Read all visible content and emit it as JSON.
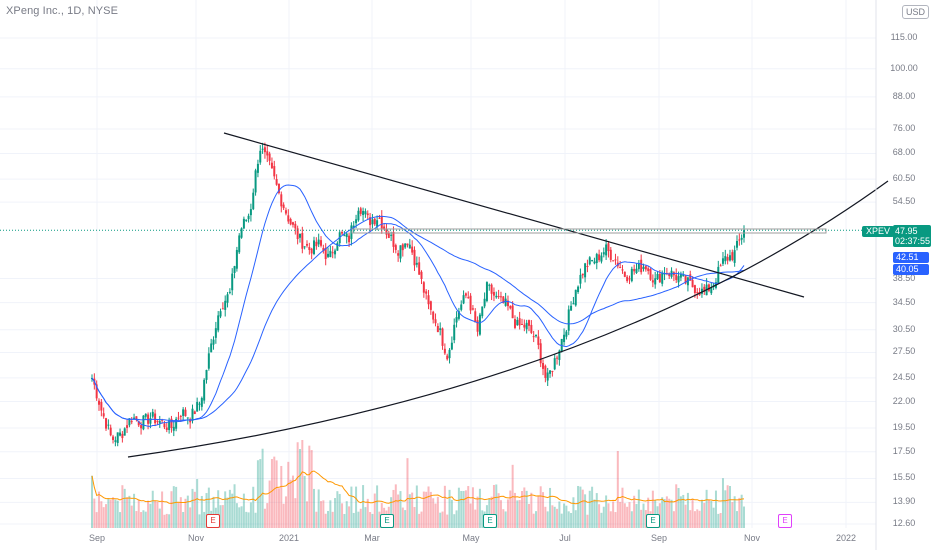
{
  "header": {
    "symbol_title": "XPeng Inc., 1D, NYSE",
    "currency": "USD"
  },
  "price_tags": {
    "symbol": "XPEV",
    "last_price": "47.95",
    "countdown": "02:37:55",
    "ma_fast_value": "42.51",
    "ma_slow_value": "40.05"
  },
  "earnings_markers": [
    {
      "label": "E",
      "color": "#e53935"
    },
    {
      "label": "E",
      "color": "#089981"
    },
    {
      "label": "E",
      "color": "#089981"
    },
    {
      "label": "E",
      "color": "#089981"
    },
    {
      "label": "E",
      "color": "#e040fb"
    }
  ],
  "colors": {
    "up": "#089981",
    "down": "#f23645",
    "ma": "#2962ff",
    "volume_ma": "#ff9800",
    "trendline": "#131722",
    "grid": "#f0f3fa"
  },
  "chart_data": {
    "type": "candlestick",
    "symbol": "XPEV",
    "interval": "1D",
    "exchange": "NYSE",
    "y_axis": {
      "scale": "log",
      "ticks": [
        "115.00",
        "100.00",
        "88.00",
        "76.00",
        "68.00",
        "60.50",
        "54.50",
        "47.95",
        "38.50",
        "34.50",
        "30.50",
        "27.50",
        "24.50",
        "22.00",
        "19.50",
        "17.50",
        "15.50",
        "13.90",
        "12.60"
      ]
    },
    "x_axis": {
      "ticks": [
        "Sep",
        "Nov",
        "2021",
        "Mar",
        "May",
        "Jul",
        "Sep",
        "Nov",
        "2022"
      ]
    },
    "price_path": [
      [
        "Sep",
        24.5
      ],
      [
        "Sep",
        21
      ],
      [
        "Sep",
        18.5
      ],
      [
        "Sep",
        19
      ],
      [
        "Oct",
        20.5
      ],
      [
        "Oct",
        20
      ],
      [
        "Oct",
        20.5
      ],
      [
        "Oct",
        20
      ],
      [
        "Oct",
        19.5
      ],
      [
        "Oct",
        21
      ],
      [
        "Oct",
        20.5
      ],
      [
        "Oct",
        22
      ],
      [
        "Nov",
        28
      ],
      [
        "Nov",
        34
      ],
      [
        "Nov",
        36
      ],
      [
        "Nov",
        48
      ],
      [
        "Nov",
        52
      ],
      [
        "Nov",
        70
      ],
      [
        "Nov",
        64
      ],
      [
        "Dec",
        56
      ],
      [
        "Dec",
        50
      ],
      [
        "Dec",
        46
      ],
      [
        "Dec",
        44
      ],
      [
        "Dec",
        45
      ],
      [
        "Jan",
        42
      ],
      [
        "Jan",
        47
      ],
      [
        "Jan",
        46
      ],
      [
        "Jan",
        54
      ],
      [
        "Jan",
        50
      ],
      [
        "Feb",
        51
      ],
      [
        "Feb",
        47
      ],
      [
        "Feb",
        44
      ],
      [
        "Feb",
        46
      ],
      [
        "Feb",
        40
      ],
      [
        "Mar",
        34
      ],
      [
        "Mar",
        31
      ],
      [
        "Mar",
        27
      ],
      [
        "Mar",
        33
      ],
      [
        "Mar",
        36
      ],
      [
        "Apr",
        30
      ],
      [
        "Apr",
        37
      ],
      [
        "Apr",
        35
      ],
      [
        "Apr",
        34
      ],
      [
        "Apr",
        31
      ],
      [
        "May",
        31
      ],
      [
        "May",
        29
      ],
      [
        "May",
        24
      ],
      [
        "May",
        27
      ],
      [
        "Jun",
        31
      ],
      [
        "Jun",
        37
      ],
      [
        "Jun",
        41
      ],
      [
        "Jun",
        42
      ],
      [
        "Jul",
        44
      ],
      [
        "Jul",
        42
      ],
      [
        "Jul",
        39
      ],
      [
        "Jul",
        40
      ],
      [
        "Aug",
        41
      ],
      [
        "Aug",
        38
      ],
      [
        "Aug",
        40
      ],
      [
        "Sep",
        39
      ],
      [
        "Sep",
        38
      ],
      [
        "Sep",
        37
      ],
      [
        "Sep",
        36
      ],
      [
        "Oct",
        38
      ],
      [
        "Oct",
        42
      ],
      [
        "Oct",
        43
      ],
      [
        "Oct",
        47.95
      ]
    ],
    "moving_averages": [
      {
        "value_last": 42.51
      },
      {
        "value_last": 40.05
      }
    ],
    "last_price": 47.95,
    "has_volume": true
  }
}
